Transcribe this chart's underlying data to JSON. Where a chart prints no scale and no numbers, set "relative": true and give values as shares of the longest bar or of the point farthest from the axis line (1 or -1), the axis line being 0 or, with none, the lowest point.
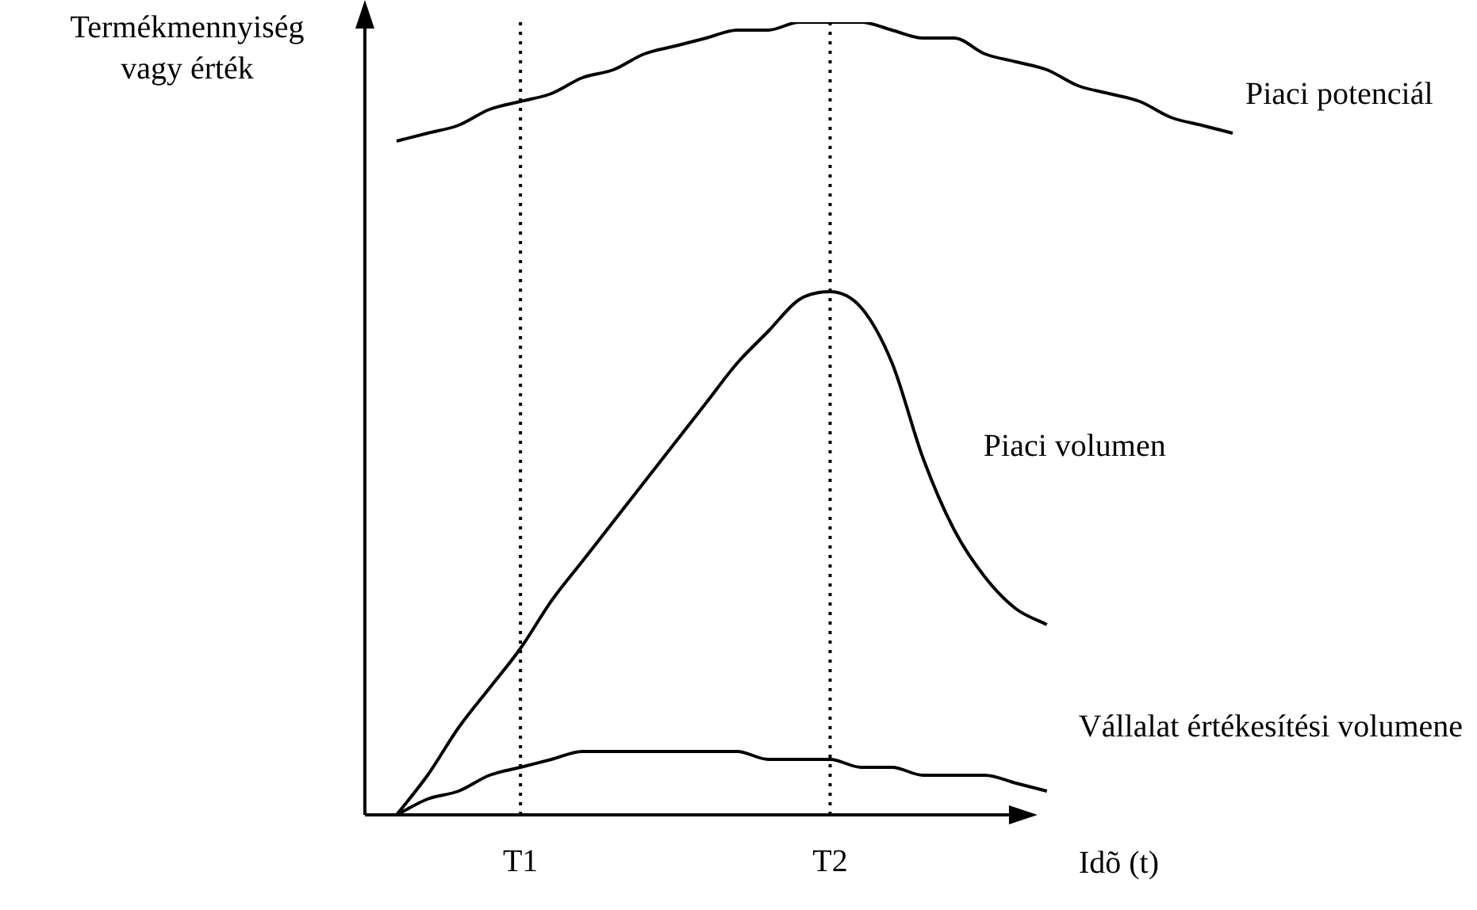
{
  "chart_data": {
    "type": "line",
    "relative": true,
    "ylabel": "Termékmennyiség vagy érték",
    "xlabel": "Idõ (t)",
    "categories": [
      null,
      null,
      null,
      null,
      "T1",
      null,
      null,
      null,
      null,
      null,
      null,
      null,
      null,
      null,
      "T2",
      null,
      null,
      null,
      null,
      null,
      null,
      null,
      null,
      null,
      null,
      null,
      null,
      null
    ],
    "series": [
      {
        "name": "Piaci potenciál",
        "color": "#000000",
        "values": [
          0.85,
          0.86,
          0.87,
          0.89,
          0.9,
          0.91,
          0.93,
          0.94,
          0.96,
          0.97,
          0.98,
          0.99,
          0.99,
          1,
          1,
          1,
          0.99,
          0.98,
          0.98,
          0.96,
          0.95,
          0.94,
          0.92,
          0.91,
          0.9,
          0.88,
          0.87,
          0.86
        ]
      },
      {
        "name": "Piaci volumen",
        "color": "#000000",
        "values": [
          0,
          0.05,
          0.11,
          0.16,
          0.21,
          0.27,
          0.32,
          0.37,
          0.42,
          0.47,
          0.52,
          0.57,
          0.61,
          0.65,
          0.66,
          0.64,
          0.57,
          0.45,
          0.36,
          0.3,
          0.26,
          0.24,
          null,
          null,
          null,
          null,
          null,
          null
        ]
      },
      {
        "name": "Vállalat értékesítési volumene",
        "color": "#000000",
        "values": [
          0,
          0.02,
          0.03,
          0.05,
          0.06,
          0.07,
          0.08,
          0.08,
          0.08,
          0.08,
          0.08,
          0.08,
          0.07,
          0.07,
          0.07,
          0.06,
          0.06,
          0.05,
          0.05,
          0.05,
          0.04,
          0.03,
          null,
          null,
          null,
          null,
          null,
          null
        ]
      }
    ],
    "ref_lines": [
      {
        "axis": "x",
        "value": "T1",
        "line_style": "dotted"
      },
      {
        "axis": "x",
        "value": "T2",
        "line_style": "dotted"
      }
    ],
    "legend": false,
    "grid": false,
    "marker": "none",
    "line_style": "solid"
  }
}
